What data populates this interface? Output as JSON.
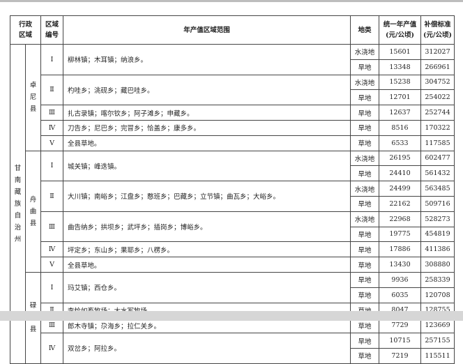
{
  "headers": {
    "region": "行政\n区域",
    "zone_no": "区域\n编号",
    "range": "年产值区域范围",
    "land_type": "地类",
    "annual_value": "统一年产值\n(元/公顷)",
    "compensation": "补偿标准\n(元/公顷)"
  },
  "prefecture": "甘南藏族自治州",
  "counties": [
    {
      "name": "卓尼县",
      "zones": [
        {
          "no": "Ⅰ",
          "range": "柳林镇；木耳镇；纳浪乡。",
          "rows": [
            [
              "水浇地",
              "15601",
              "312027"
            ],
            [
              "旱地",
              "13348",
              "266961"
            ]
          ]
        },
        {
          "no": "Ⅱ",
          "range": "杓哇乡；洮砚乡；藏巴哇乡。",
          "rows": [
            [
              "水浇地",
              "15238",
              "304752"
            ],
            [
              "旱地",
              "12701",
              "254022"
            ]
          ]
        },
        {
          "no": "Ⅲ",
          "range": "扎古录镇；喀尔钦乡；阿子滩乡；申藏乡。",
          "rows": [
            [
              "旱地",
              "12637",
              "252744"
            ]
          ]
        },
        {
          "no": "Ⅳ",
          "range": "刀告乡；尼巴乡；完冒乡；恰盖乡；康多乡。",
          "rows": [
            [
              "旱地",
              "8516",
              "170322"
            ]
          ]
        },
        {
          "no": "Ⅴ",
          "range": "全县草地。",
          "rows": [
            [
              "草地",
              "6533",
              "117585"
            ]
          ]
        }
      ]
    },
    {
      "name": "舟曲县",
      "zones": [
        {
          "no": "Ⅰ",
          "range": "城关镇；峰迭镇。",
          "rows": [
            [
              "水浇地",
              "26195",
              "602477"
            ],
            [
              "旱地",
              "24410",
              "561432"
            ]
          ]
        },
        {
          "no": "Ⅱ",
          "range": "大川镇；南峪乡；江盘乡；憨班乡；巴藏乡；立节镇；曲瓦乡；大峪乡。",
          "rows": [
            [
              "水浇地",
              "24499",
              "563485"
            ],
            [
              "旱地",
              "22162",
              "509716"
            ]
          ]
        },
        {
          "no": "Ⅲ",
          "range": "曲告纳乡；拱坝乡；武坪乡；插岗乡；博峪乡。",
          "rows": [
            [
              "水浇地",
              "22968",
              "528273"
            ],
            [
              "旱地",
              "19775",
              "454819"
            ]
          ]
        },
        {
          "no": "Ⅳ",
          "range": "坪定乡；东山乡；果耶乡；八楞乡。",
          "rows": [
            [
              "旱地",
              "17886",
              "411386"
            ]
          ]
        },
        {
          "no": "Ⅴ",
          "range": "全县草地。",
          "rows": [
            [
              "草地",
              "13430",
              "308880"
            ]
          ]
        }
      ]
    },
    {
      "name": "碌曲县",
      "zones": [
        {
          "no": "Ⅰ",
          "range": "玛艾镇；西仓乡。",
          "rows": [
            [
              "旱地",
              "9936",
              "258339"
            ],
            [
              "草地",
              "6035",
              "120708"
            ]
          ]
        },
        {
          "no": "Ⅱ",
          "range": "李恰如畜牧场；大水军牧场。",
          "rows": [
            [
              "草地",
              "8047",
              "128755"
            ]
          ]
        },
        {
          "no": "Ⅲ",
          "range": "郎木寺镇；尕海乡；拉仁关乡。",
          "rows": [
            [
              "草地",
              "7729",
              "123669"
            ]
          ]
        },
        {
          "no": "Ⅳ",
          "range": "双岔乡；阿拉乡。",
          "rows": [
            [
              "旱地",
              "10715",
              "257155"
            ],
            [
              "草地",
              "7219",
              "115511"
            ]
          ]
        }
      ]
    }
  ]
}
